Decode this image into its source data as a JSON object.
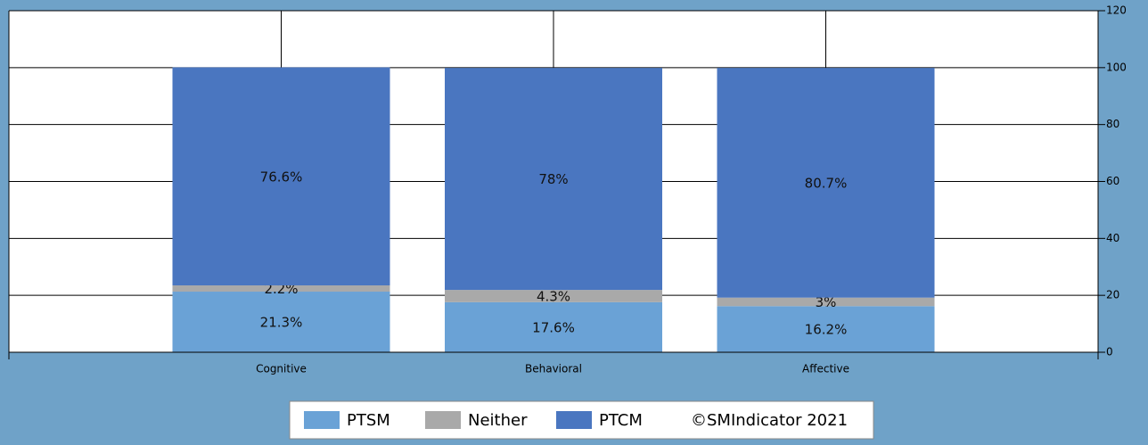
{
  "chart_data": {
    "type": "stacked_bar",
    "categories": [
      "Cognitive",
      "Behavioral",
      "Affective"
    ],
    "series": [
      {
        "name": "PTSM",
        "color": "#6aa2d6",
        "values": [
          21.3,
          17.6,
          16.2
        ],
        "value_labels": [
          "21.3%",
          "17.6%",
          "16.2%"
        ]
      },
      {
        "name": "Neither",
        "color": "#a9a9a9",
        "values": [
          2.2,
          4.3,
          3
        ],
        "value_labels": [
          "2.2%",
          "4.3%",
          "3%"
        ]
      },
      {
        "name": "PTCM",
        "color": "#4a76c0",
        "values": [
          76.6,
          78,
          80.7
        ],
        "value_labels": [
          "76.6%",
          "78%",
          "80.7%"
        ]
      }
    ],
    "ylim": [
      0,
      120
    ],
    "yticks": [
      0,
      20,
      40,
      60,
      80,
      100,
      120
    ],
    "grid": true,
    "legend_note": "©SMIndicator 2021"
  }
}
